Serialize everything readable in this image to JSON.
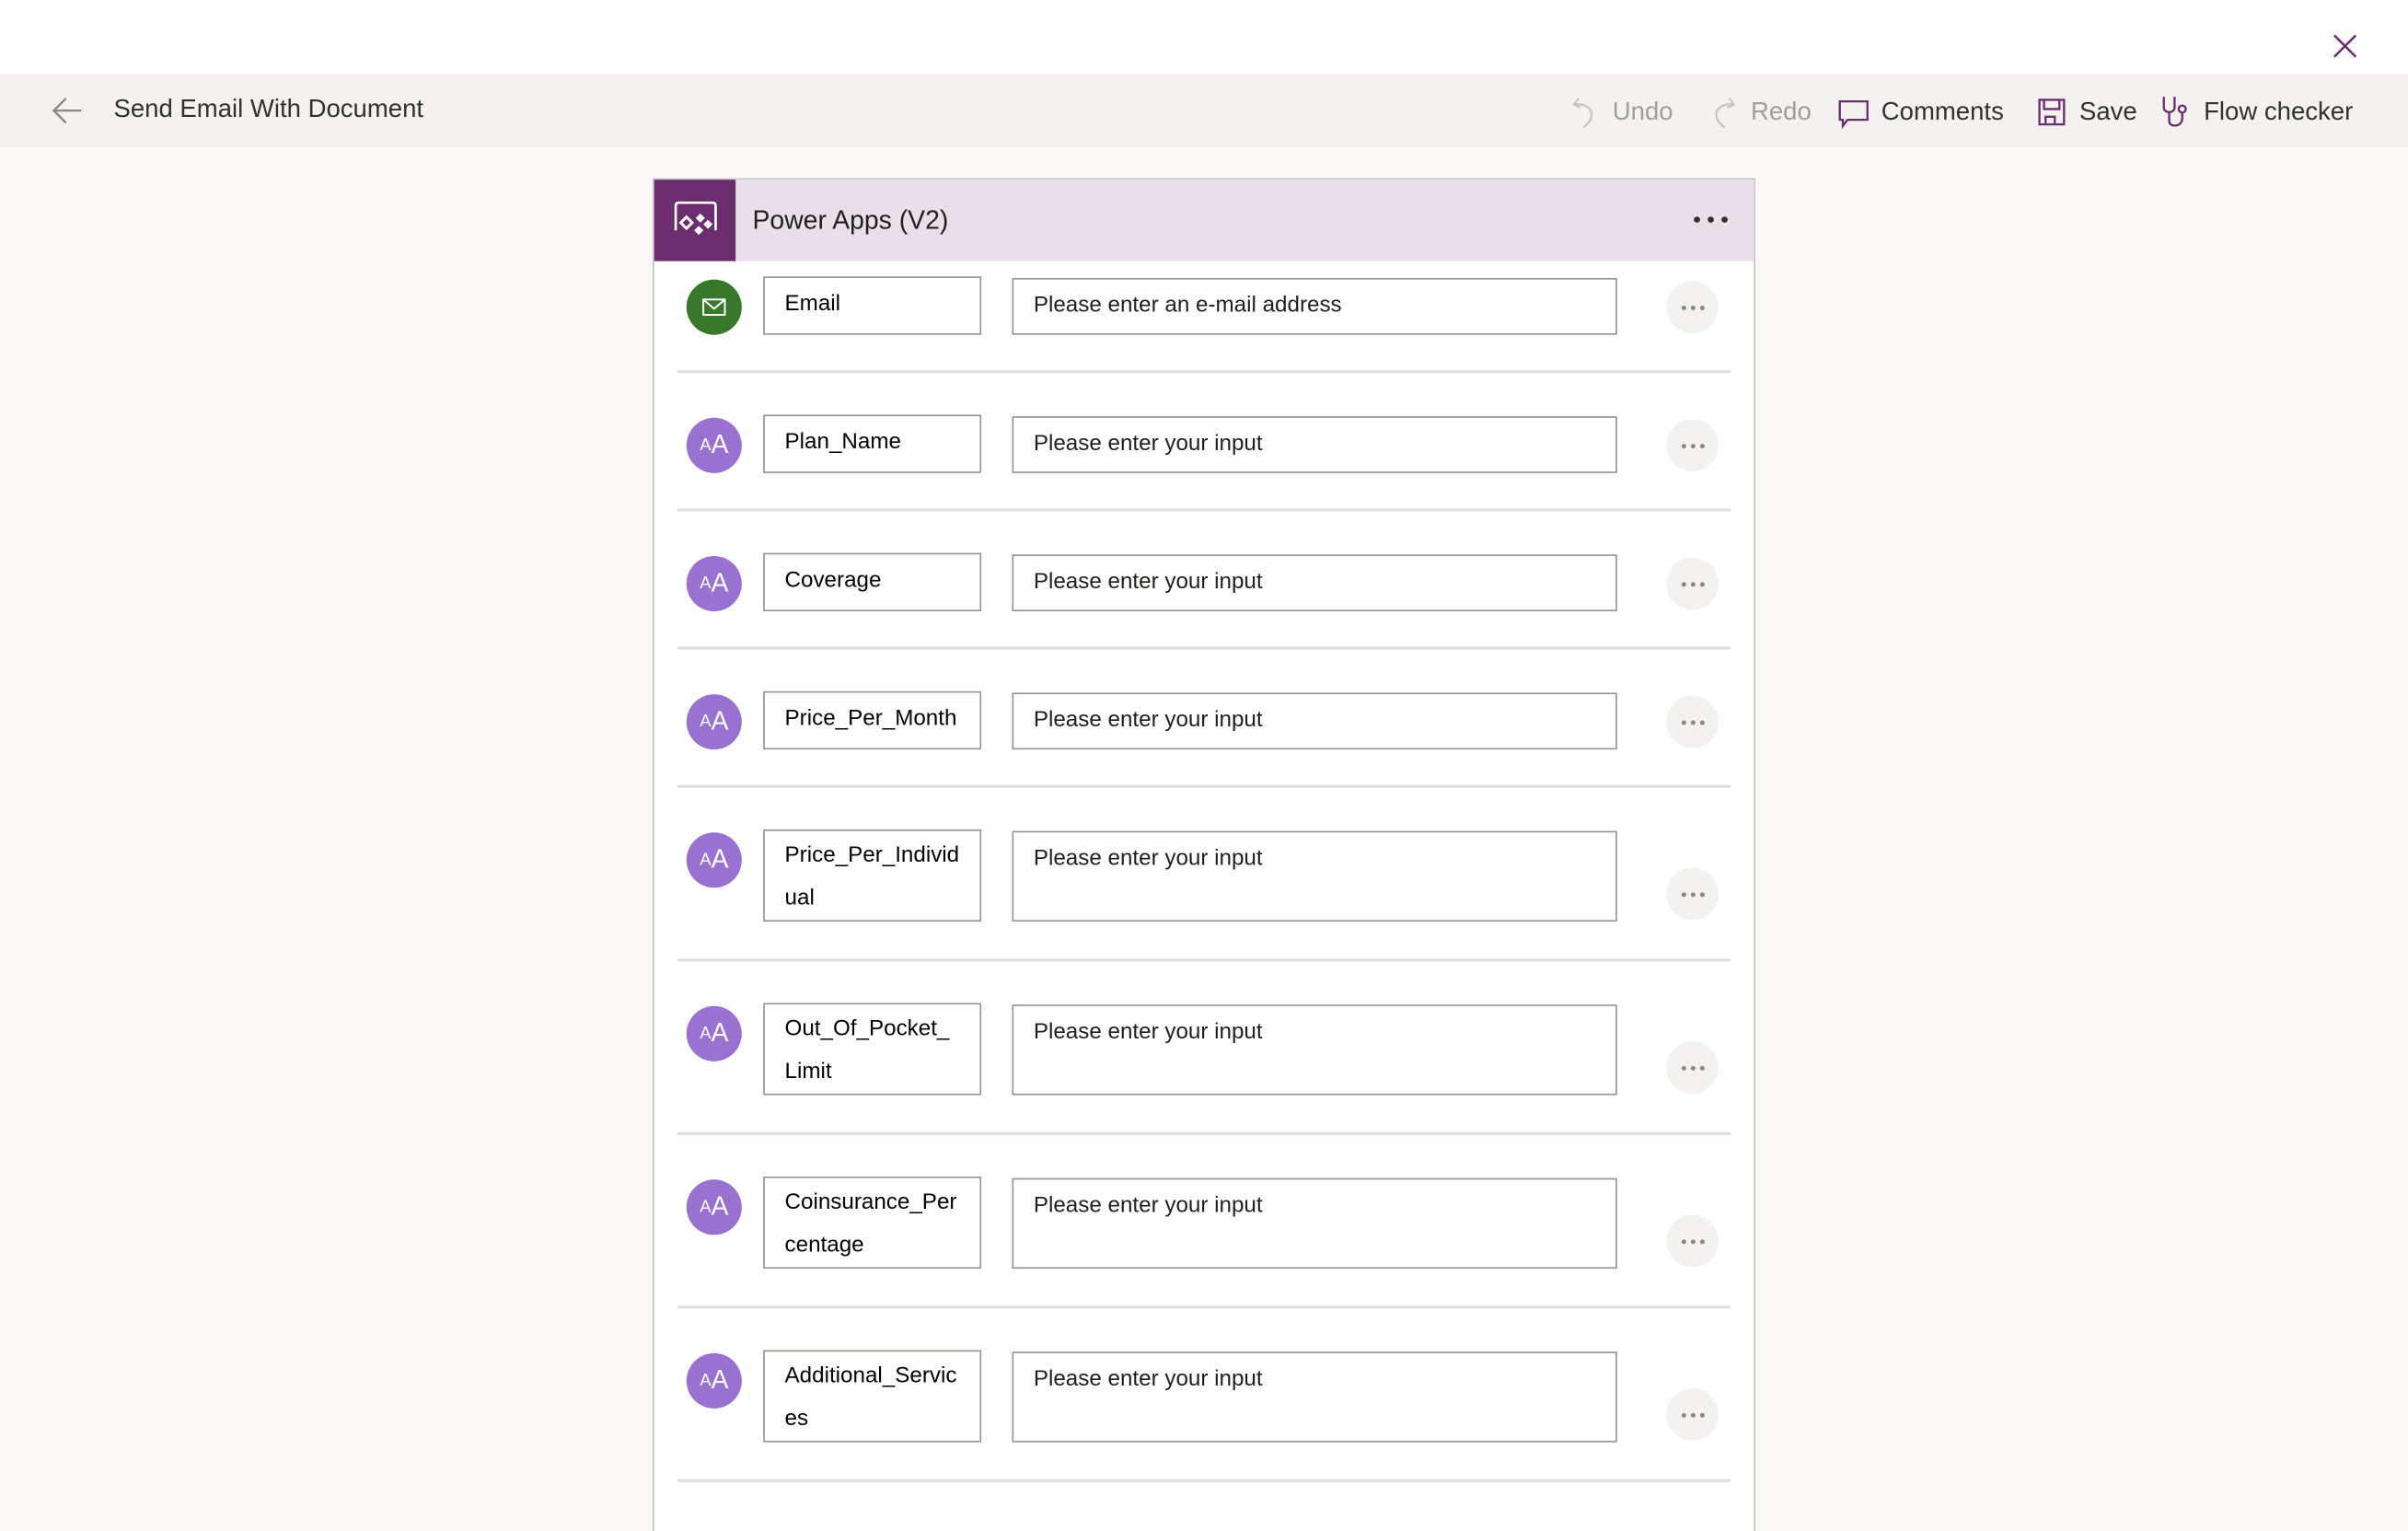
{
  "header": {
    "flow_title": "Send Email With Document",
    "commands": {
      "undo": "Undo",
      "redo": "Redo",
      "comments": "Comments",
      "save": "Save",
      "flow_checker": "Flow checker"
    }
  },
  "colors": {
    "accent": "#6b2d6e",
    "email_icon": "#37782a",
    "text_icon": "#9871d1",
    "card_header": "#e8dfe8"
  },
  "card": {
    "title": "Power Apps (V2)",
    "inputs": [
      {
        "name": "Email",
        "placeholder": "Please enter an e-mail address",
        "type": "email",
        "icon": "mail-icon"
      },
      {
        "name": "Plan_Name",
        "placeholder": "Please enter your input",
        "type": "text",
        "icon": "text-icon"
      },
      {
        "name": "Coverage",
        "placeholder": "Please enter your input",
        "type": "text",
        "icon": "text-icon"
      },
      {
        "name": "Price_Per_Month",
        "placeholder": "Please enter your input",
        "type": "text",
        "icon": "text-icon"
      },
      {
        "name": "Price_Per_Individual",
        "placeholder": "Please enter your input",
        "type": "text",
        "icon": "text-icon"
      },
      {
        "name": "Out_Of_Pocket_Limit",
        "placeholder": "Please enter your input",
        "type": "text",
        "icon": "text-icon"
      },
      {
        "name": "Coinsurance_Percentage",
        "placeholder": "Please enter your input",
        "type": "text",
        "icon": "text-icon"
      },
      {
        "name": "Additional_Services",
        "placeholder": "Please enter your input",
        "type": "text",
        "icon": "text-icon"
      }
    ]
  }
}
